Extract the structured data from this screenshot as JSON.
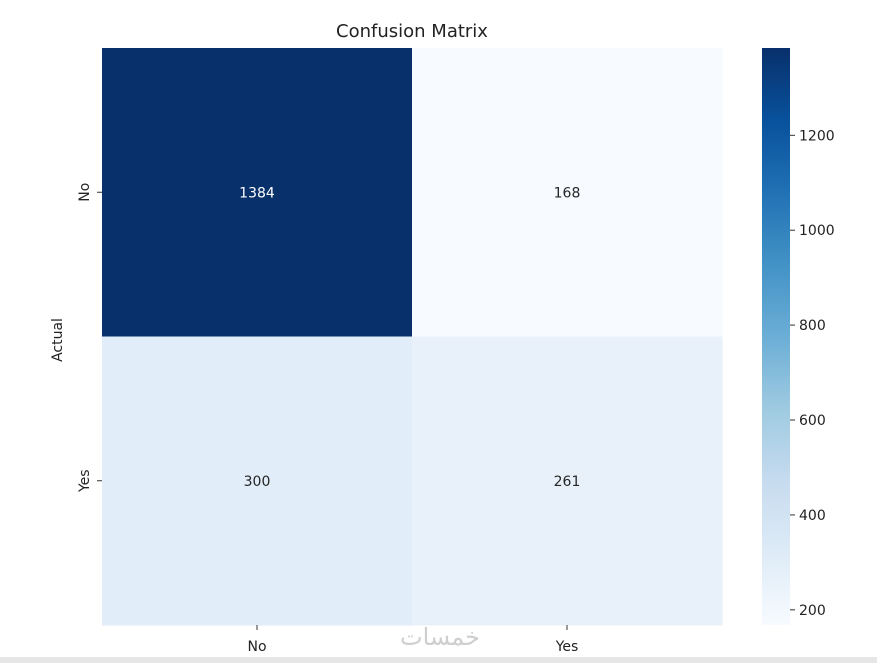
{
  "chart_data": {
    "type": "heatmap",
    "title": "Confusion Matrix",
    "xlabel": "",
    "ylabel": "Actual",
    "x_categories": [
      "No",
      "Yes"
    ],
    "y_categories": [
      "No",
      "Yes"
    ],
    "values": [
      [
        1384,
        168
      ],
      [
        300,
        261
      ]
    ],
    "colormap": "Blues",
    "colormap_stops": [
      "#f7fbff",
      "#deebf7",
      "#c6dbef",
      "#9ecae1",
      "#6baed6",
      "#4292c6",
      "#2171b5",
      "#08519c",
      "#08306b"
    ],
    "colorbar": {
      "min": 168,
      "max": 1384,
      "ticks": [
        200,
        400,
        600,
        800,
        1000,
        1200
      ]
    }
  },
  "watermark": "خمسات"
}
